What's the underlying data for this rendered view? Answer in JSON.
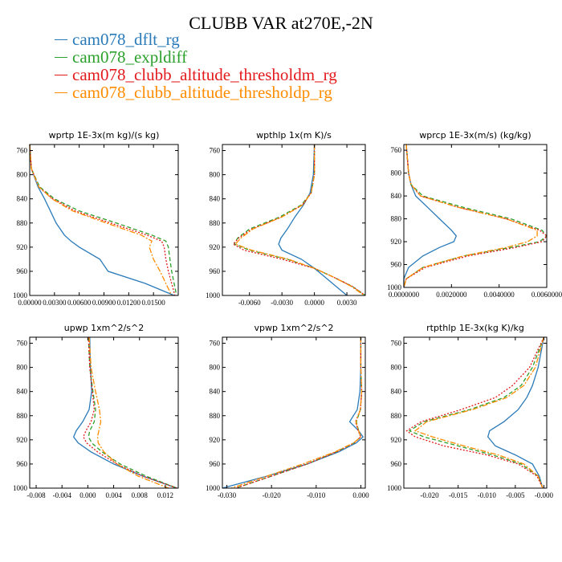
{
  "title": "CLUBB VAR at270E,-2N",
  "series": [
    {
      "name": "cam078_dflt_rg",
      "color": "#2b7bb9",
      "dash": ""
    },
    {
      "name": "cam078_expldiff",
      "color": "#2ca02c",
      "dash": "5,3"
    },
    {
      "name": "cam078_clubb_altitude_thresholdm_rg",
      "color": "#e31a1c",
      "dash": "2,2"
    },
    {
      "name": "cam078_clubb_altitude_thresholdp_rg",
      "color": "#ff8c00",
      "dash": "7,2,2,2"
    }
  ],
  "chart_data": [
    {
      "type": "line",
      "title": "wprtp  1E-3x(m kg)/(s kg)",
      "xlim": [
        0,
        0.018
      ],
      "ylim": [
        1000,
        750
      ],
      "xticks": [
        "0.00000",
        "0.00300",
        "0.00600",
        "0.00900",
        "0.01200",
        "0.01500"
      ],
      "xtick_values": [
        0,
        0.003,
        0.006,
        0.009,
        0.012,
        0.015
      ],
      "yticks": [
        760,
        800,
        840,
        880,
        920,
        960,
        1000
      ],
      "y": [
        750,
        790,
        820,
        840,
        860,
        880,
        900,
        910,
        920,
        940,
        960,
        980,
        1000
      ],
      "series": [
        [
          0,
          0.0002,
          0.001,
          0.0018,
          0.0025,
          0.0032,
          0.0042,
          0.005,
          0.006,
          0.0085,
          0.0095,
          0.014,
          0.0175
        ],
        [
          0,
          0.0002,
          0.0012,
          0.003,
          0.006,
          0.0105,
          0.0148,
          0.0165,
          0.0168,
          0.017,
          0.0172,
          0.0175,
          0.0178
        ],
        [
          0,
          0.0002,
          0.0011,
          0.0028,
          0.0055,
          0.0098,
          0.0142,
          0.016,
          0.0163,
          0.0165,
          0.0168,
          0.0172,
          0.0176
        ],
        [
          0,
          0.0002,
          0.0011,
          0.0027,
          0.0052,
          0.0093,
          0.0135,
          0.0148,
          0.0145,
          0.015,
          0.0158,
          0.0165,
          0.0172
        ]
      ]
    },
    {
      "type": "line",
      "title": "wpthlp  1x(m K)/s",
      "xlim": [
        -0.0085,
        0.0047
      ],
      "ylim": [
        1000,
        750
      ],
      "xticks": [
        "-0.0060",
        "-0.0030",
        "0.0000",
        "0.0030"
      ],
      "xtick_values": [
        -0.006,
        -0.003,
        0,
        0.003
      ],
      "yticks": [
        760,
        800,
        840,
        880,
        920,
        960,
        1000
      ],
      "y": [
        750,
        800,
        830,
        850,
        870,
        890,
        905,
        915,
        925,
        940,
        955,
        970,
        985,
        1000
      ],
      "series": [
        [
          0,
          -0.0001,
          -0.0004,
          -0.001,
          -0.0018,
          -0.0025,
          -0.0031,
          -0.0033,
          -0.003,
          -0.0012,
          0,
          0.001,
          0.002,
          0.003
        ],
        [
          0,
          0,
          -0.0003,
          -0.0012,
          -0.0032,
          -0.006,
          -0.0071,
          -0.0074,
          -0.006,
          -0.0025,
          0,
          0.0018,
          0.0035,
          0.0047
        ],
        [
          0,
          0,
          -0.0003,
          -0.0011,
          -0.003,
          -0.0058,
          -0.007,
          -0.0075,
          -0.0065,
          -0.003,
          0,
          0.0018,
          0.0035,
          0.0047
        ],
        [
          0,
          0,
          -0.0003,
          -0.0011,
          -0.003,
          -0.0057,
          -0.0068,
          -0.0073,
          -0.0058,
          -0.0024,
          0,
          0.0018,
          0.0034,
          0.0046
        ]
      ]
    },
    {
      "type": "line",
      "title": "wprcp  1E-3x(m/s) (kg/kg)",
      "xlim": [
        0,
        0.006
      ],
      "ylim": [
        1000,
        750
      ],
      "xticks": [
        "0.0000000",
        "0.0020000",
        "0.0040000",
        "0.0060000"
      ],
      "xtick_values": [
        0,
        0.002,
        0.004,
        0.006
      ],
      "yticks": [
        760,
        800,
        840,
        880,
        920,
        960,
        1000
      ],
      "y": [
        750,
        800,
        820,
        840,
        860,
        880,
        900,
        910,
        920,
        930,
        945,
        965,
        985,
        1000
      ],
      "series": [
        [
          0.0001,
          0.0002,
          0.0003,
          0.0005,
          0.001,
          0.0015,
          0.002,
          0.0022,
          0.0021,
          0.0015,
          0.0008,
          0.0002,
          0,
          0
        ],
        [
          0.0001,
          0.0002,
          0.0003,
          0.0008,
          0.0025,
          0.0045,
          0.0058,
          0.006,
          0.0057,
          0.0045,
          0.0025,
          0.0008,
          0.0001,
          0
        ],
        [
          0.0001,
          0.0002,
          0.0003,
          0.0007,
          0.0023,
          0.0043,
          0.0057,
          0.006,
          0.0058,
          0.0047,
          0.0027,
          0.0009,
          0.0001,
          0
        ],
        [
          0.0001,
          0.0002,
          0.0003,
          0.0007,
          0.0023,
          0.0043,
          0.0056,
          0.0056,
          0.0052,
          0.0043,
          0.0025,
          0.0008,
          0.0001,
          0
        ]
      ]
    },
    {
      "type": "line",
      "title": "upwp  1xm^2/s^2",
      "xlim": [
        -0.009,
        0.014
      ],
      "ylim": [
        1000,
        750
      ],
      "xticks": [
        "-0.008",
        "-0.004",
        "0.000",
        "0.004",
        "0.008",
        "0.012"
      ],
      "xtick_values": [
        -0.008,
        -0.004,
        0,
        0.004,
        0.008,
        0.012
      ],
      "yticks": [
        760,
        800,
        840,
        880,
        920,
        960,
        1000
      ],
      "y": [
        750,
        800,
        840,
        870,
        890,
        905,
        915,
        925,
        940,
        960,
        980,
        1000
      ],
      "series": [
        [
          0.0003,
          0.0004,
          0.0006,
          0.0002,
          -0.0008,
          -0.0018,
          -0.0022,
          -0.0015,
          0.0005,
          0.004,
          0.0085,
          0.0138
        ],
        [
          0.0001,
          0.0003,
          0.0008,
          0.0012,
          0.001,
          0.0003,
          0.0001,
          0.0006,
          0.0022,
          0.005,
          0.009,
          0.0138
        ],
        [
          0.0001,
          0.0003,
          0.0007,
          0.001,
          0.0005,
          -0.0003,
          -0.0007,
          -0.0002,
          0.0015,
          0.0045,
          0.0085,
          0.0138
        ],
        [
          0.0002,
          0.0005,
          0.0012,
          0.0018,
          0.002,
          0.0017,
          0.0015,
          0.0016,
          0.0025,
          0.0045,
          0.0078,
          0.0125
        ]
      ]
    },
    {
      "type": "line",
      "title": "vpwp  1xm^2/s^2",
      "xlim": [
        -0.031,
        0.001
      ],
      "ylim": [
        1000,
        750
      ],
      "xticks": [
        "-0.030",
        "-0.020",
        "-0.010",
        "0.000"
      ],
      "xtick_values": [
        -0.03,
        -0.02,
        -0.01,
        0
      ],
      "yticks": [
        760,
        800,
        840,
        880,
        920,
        960,
        1000
      ],
      "y": [
        750,
        800,
        840,
        870,
        890,
        905,
        915,
        925,
        940,
        960,
        980,
        1000
      ],
      "series": [
        [
          0,
          0,
          -0.0002,
          -0.0008,
          -0.0025,
          -0.0005,
          0.0005,
          -0.001,
          -0.005,
          -0.012,
          -0.021,
          -0.031
        ],
        [
          0,
          0,
          0.0002,
          -0.0001,
          -0.001,
          -0.0005,
          0,
          -0.0015,
          -0.0055,
          -0.012,
          -0.02,
          -0.028
        ],
        [
          0,
          0,
          0.0002,
          -0.0001,
          -0.0012,
          -0.0006,
          0,
          -0.0015,
          -0.0055,
          -0.012,
          -0.02,
          -0.028
        ],
        [
          0,
          0,
          0.0002,
          -0.0001,
          -0.0011,
          -0.0005,
          0,
          -0.0016,
          -0.0058,
          -0.013,
          -0.021,
          -0.029
        ]
      ]
    },
    {
      "type": "line",
      "title": "rtpthlp  1E-3x(kg K)/kg",
      "xlim": [
        -0.0245,
        0.0005
      ],
      "ylim": [
        1000,
        750
      ],
      "xticks": [
        "-0.020",
        "-0.015",
        "-0.010",
        "-0.005",
        "-0.000"
      ],
      "xtick_values": [
        -0.02,
        -0.015,
        -0.01,
        -0.005,
        0
      ],
      "yticks": [
        760,
        800,
        840,
        880,
        920,
        960,
        1000
      ],
      "y": [
        750,
        800,
        830,
        850,
        870,
        890,
        905,
        915,
        930,
        945,
        960,
        980,
        1000
      ],
      "series": [
        [
          0,
          -0.001,
          -0.002,
          -0.003,
          -0.0045,
          -0.007,
          -0.0095,
          -0.0098,
          -0.0085,
          -0.005,
          -0.002,
          -0.0008,
          -0.0002
        ],
        [
          0,
          -0.002,
          -0.004,
          -0.007,
          -0.013,
          -0.021,
          -0.0235,
          -0.021,
          -0.015,
          -0.009,
          -0.004,
          -0.001,
          -0.0002
        ],
        [
          0,
          -0.0025,
          -0.0055,
          -0.0085,
          -0.0145,
          -0.0215,
          -0.024,
          -0.0225,
          -0.0175,
          -0.01,
          -0.0045,
          -0.0012,
          -0.0002
        ],
        [
          0,
          -0.0015,
          -0.0035,
          -0.0065,
          -0.0125,
          -0.0205,
          -0.0225,
          -0.0195,
          -0.014,
          -0.008,
          -0.0035,
          -0.001,
          -0.0002
        ]
      ]
    }
  ]
}
